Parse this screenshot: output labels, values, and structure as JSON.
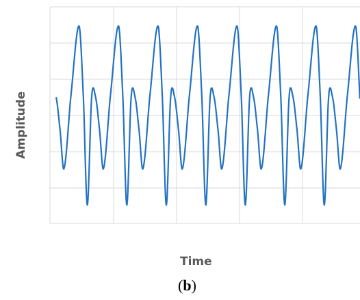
{
  "chart_data": {
    "type": "line",
    "title": "",
    "xlabel": "Time",
    "ylabel": "Amplitude",
    "panel_label": "(b)",
    "grid": true,
    "line_color": "#2372c4",
    "grid_color": "#d9d9d9",
    "axis_ticks_visible": false,
    "ylim": [
      -2.5,
      2.5
    ],
    "signal": {
      "description_free": true,
      "period": 1,
      "cycles_shown": 7.7,
      "profile_x": [
        0.0,
        0.1,
        0.2,
        0.37,
        0.58,
        0.69,
        0.79,
        0.9,
        1.0
      ],
      "profile_y": [
        0.5,
        -0.4,
        -1.45,
        0.5,
        2.45,
        0.5,
        -2.45,
        0.5,
        0.5
      ]
    }
  }
}
